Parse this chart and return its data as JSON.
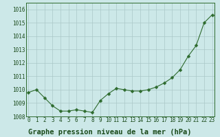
{
  "x": [
    0,
    1,
    2,
    3,
    4,
    5,
    6,
    7,
    8,
    9,
    10,
    11,
    12,
    13,
    14,
    15,
    16,
    17,
    18,
    19,
    20,
    21,
    22,
    23
  ],
  "y": [
    1009.8,
    1010.0,
    1009.4,
    1008.8,
    1008.4,
    1008.4,
    1008.5,
    1008.4,
    1008.3,
    1009.2,
    1009.7,
    1010.1,
    1010.0,
    1009.9,
    1009.9,
    1010.0,
    1010.2,
    1010.5,
    1010.9,
    1011.5,
    1012.5,
    1013.3,
    1015.0,
    1015.6
  ],
  "line_color": "#2d6a2d",
  "marker": "D",
  "marker_size": 2.5,
  "bg_color": "#cce8e8",
  "grid_color": "#aac8c8",
  "xlabel": "Graphe pression niveau de la mer (hPa)",
  "xlabel_fontsize": 7.5,
  "xlabel_color": "#1a4a1a",
  "ylim": [
    1008.0,
    1016.5
  ],
  "ytick_vals": [
    1008,
    1009,
    1010,
    1011,
    1012,
    1013,
    1014,
    1015,
    1016
  ],
  "ytick_labels": [
    "1008",
    "1009",
    "1010",
    "1011",
    "1012",
    "1013",
    "1014",
    "1015",
    "1016"
  ],
  "xticks": [
    0,
    1,
    2,
    3,
    4,
    5,
    6,
    7,
    8,
    9,
    10,
    11,
    12,
    13,
    14,
    15,
    16,
    17,
    18,
    19,
    20,
    21,
    22,
    23
  ],
  "tick_fontsize": 5.5,
  "tick_color": "#1a4a1a",
  "spine_color": "#2d6a2d",
  "xlim": [
    -0.3,
    23.3
  ]
}
